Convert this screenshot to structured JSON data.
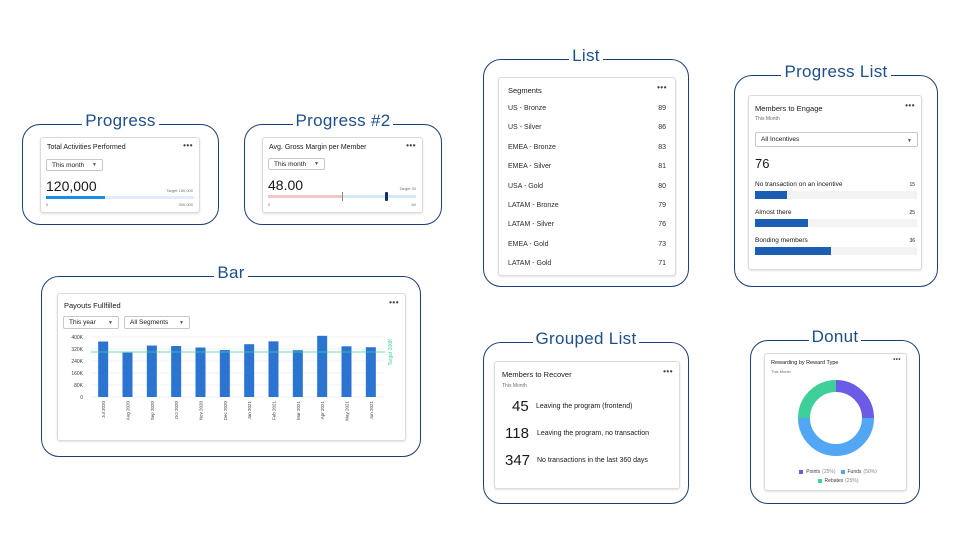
{
  "progress": {
    "frame_label": "Progress",
    "title": "Total Activities Performed",
    "filter": "This month",
    "value": "120,000",
    "target_label": "Target 150,000",
    "scale_min": "0",
    "scale_max": "300,000",
    "fill_fraction": 0.4
  },
  "progress2": {
    "frame_label": "Progress #2",
    "title": "Avg. Gross Margin per Member",
    "filter": "This month",
    "value": "48.00",
    "target_label": "Target 30",
    "scale_min": "0",
    "scale_max": "60",
    "value_fraction": 0.8,
    "target_fraction": 0.5
  },
  "bar": {
    "frame_label": "Bar",
    "title": "Payouts Fullfilled",
    "filter1": "This year",
    "filter2": "All Segments",
    "target_label": "Target 300K"
  },
  "list": {
    "frame_label": "List",
    "title": "Segments",
    "rows": [
      {
        "label": "US - Bronze",
        "value": "89"
      },
      {
        "label": "US - Silver",
        "value": "86"
      },
      {
        "label": "EMEA - Bronze",
        "value": "83"
      },
      {
        "label": "EMEA - Silver",
        "value": "81"
      },
      {
        "label": "USA - Gold",
        "value": "80"
      },
      {
        "label": "LATAM - Bronze",
        "value": "79"
      },
      {
        "label": "LATAM - Silver",
        "value": "76"
      },
      {
        "label": "EMEA - Gold",
        "value": "73"
      },
      {
        "label": "LATAM - Gold",
        "value": "71"
      }
    ]
  },
  "progress_list": {
    "frame_label": "Progress List",
    "title": "Members to Engage",
    "subtitle": "This Month",
    "filter": "All Incentives",
    "total": "76",
    "items": [
      {
        "label": "No transaction on an incentive",
        "value": "15",
        "fraction": 0.2
      },
      {
        "label": "Almost there",
        "value": "25",
        "fraction": 0.33
      },
      {
        "label": "Bonding members",
        "value": "36",
        "fraction": 0.47
      }
    ]
  },
  "grouped_list": {
    "frame_label": "Grouped List",
    "title": "Members to Recover",
    "subtitle": "This Month",
    "items": [
      {
        "value": "45",
        "label": "Leaving the program (frontend)"
      },
      {
        "value": "118",
        "label": "Leaving the program, no transaction"
      },
      {
        "value": "347",
        "label": "No transactions in the last 360 days"
      }
    ]
  },
  "donut": {
    "frame_label": "Donut",
    "title": "Rewarding by Reward Type",
    "subtitle": "This Month",
    "legend": [
      {
        "name": "Points",
        "pct": "(25%)",
        "value": 25,
        "color": "#6b5be6"
      },
      {
        "name": "Funds",
        "pct": "(50%)",
        "value": 50,
        "color": "#52a7f5"
      },
      {
        "name": "Rebates",
        "pct": "(25%)",
        "value": 25,
        "color": "#3ecf9b"
      }
    ]
  },
  "chart_data": {
    "type": "bar",
    "categories": [
      "Jul 2020",
      "Aug 2020",
      "Sep 2020",
      "Oct 2020",
      "Nov 2020",
      "Dec 2020",
      "Jan 2021",
      "Feb 2021",
      "Mar 2021",
      "Apr 2021",
      "May 2021",
      "Jun 2021"
    ],
    "values": [
      370,
      296,
      343,
      340,
      330,
      313,
      352,
      371,
      312,
      408,
      338,
      332
    ],
    "y_tick_labels": [
      "400K",
      "320K",
      "240K",
      "160K",
      "80K",
      "0"
    ],
    "y_ticks": [
      400,
      320,
      240,
      160,
      80,
      0
    ],
    "ylim": [
      0,
      400
    ],
    "target_value": 300,
    "bar_color": "#2b74d2",
    "target_color": "#3ecf9b"
  }
}
